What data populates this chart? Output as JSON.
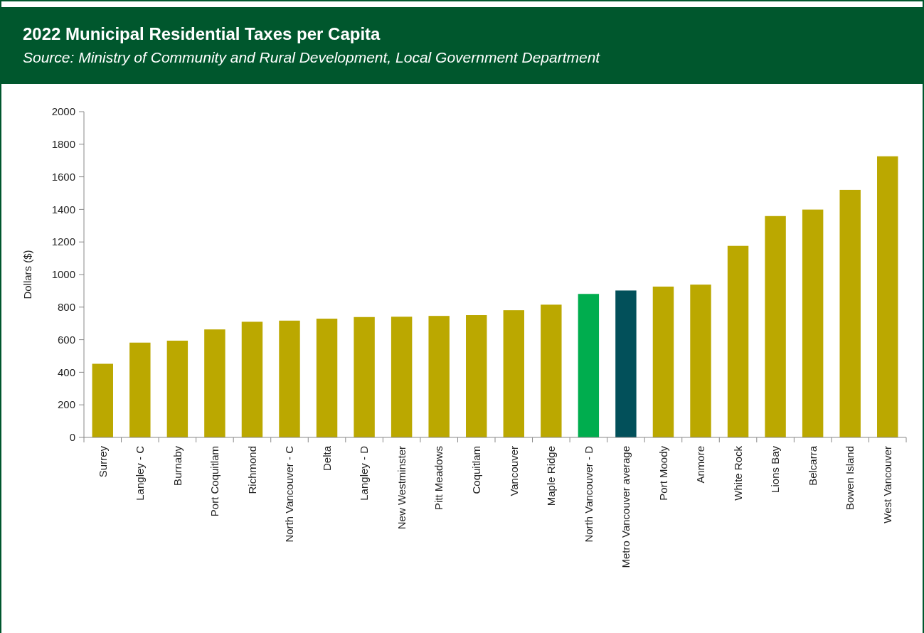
{
  "chart_data": {
    "type": "bar",
    "title": "2022 Municipal Residential Taxes per Capita",
    "subtitle": "Source: Ministry of Community and Rural Development, Local Government Department",
    "ylabel": "Dollars ($)",
    "categories": [
      "Surrey",
      "Langley - C",
      "Burnaby",
      "Port Coquitlam",
      "Richmond",
      "North Vancouver - C",
      "Delta",
      "Langley - D",
      "New Westminster",
      "Pitt Meadows",
      "Coquitlam",
      "Vancouver",
      "Maple Ridge",
      "North Vancouver - D",
      "Metro Vancouver average",
      "Port Moody",
      "Anmore",
      "White Rock",
      "Lions Bay",
      "Belcarra",
      "Bowen Island",
      "West Vancouver"
    ],
    "values": [
      452,
      582,
      594,
      663,
      710,
      717,
      729,
      739,
      741,
      746,
      751,
      781,
      815,
      881,
      902,
      926,
      938,
      1176,
      1359,
      1399,
      1520,
      1726
    ],
    "colors": [
      "#bba800",
      "#bba800",
      "#bba800",
      "#bba800",
      "#bba800",
      "#bba800",
      "#bba800",
      "#bba800",
      "#bba800",
      "#bba800",
      "#bba800",
      "#bba800",
      "#bba800",
      "#00ad4e",
      "#02505a",
      "#bba800",
      "#bba800",
      "#bba800",
      "#bba800",
      "#bba800",
      "#bba800",
      "#bba800"
    ],
    "ylim": [
      0,
      2000
    ],
    "yticks": [
      0,
      200,
      400,
      600,
      800,
      1000,
      1200,
      1400,
      1600,
      1800,
      2000
    ],
    "grid": false
  }
}
